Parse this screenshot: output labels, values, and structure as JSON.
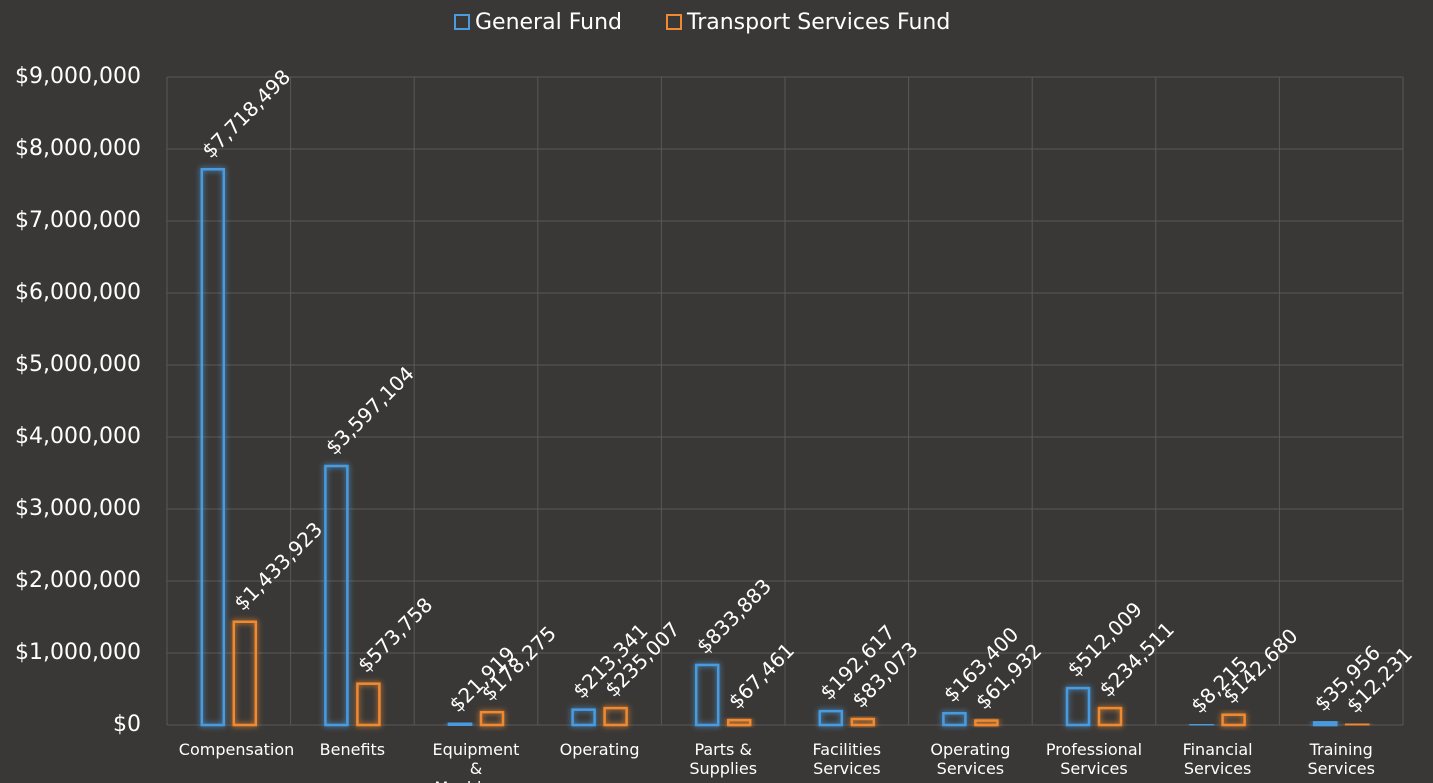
{
  "chart_data": {
    "type": "bar",
    "categories": [
      "Compensation",
      "Benefits",
      "Equipment & Machinery",
      "Operating",
      "Parts & Supplies",
      "Facilities Services",
      "Operating Services",
      "Professional Services",
      "Financial Services",
      "Training Services"
    ],
    "series": [
      {
        "name": "General Fund",
        "color": "#4a9be0",
        "values": [
          7718498,
          3597104,
          21919,
          213341,
          833883,
          192617,
          163400,
          512009,
          8215,
          35956
        ],
        "value_labels": [
          "$7,718,498",
          "$3,597,104",
          "$21,919",
          "$213,341",
          "$833,883",
          "$192,617",
          "$163,400",
          "$512,009",
          "$8,215",
          "$35,956"
        ]
      },
      {
        "name": "Transport Services Fund",
        "color": "#f08a30",
        "values": [
          1433923,
          573758,
          178275,
          235007,
          67461,
          83073,
          61932,
          234511,
          142680,
          12231
        ],
        "value_labels": [
          "$1,433,923",
          "$573,758",
          "$178,275",
          "$235,007",
          "$67,461",
          "$83,073",
          "$61,932",
          "$234,511",
          "$142,680",
          "$12,231"
        ]
      }
    ],
    "ylim": [
      0,
      9000000
    ],
    "yticks": [
      {
        "value": 0,
        "label": "$0"
      },
      {
        "value": 1000000,
        "label": "$1,000,000"
      },
      {
        "value": 2000000,
        "label": "$2,000,000"
      },
      {
        "value": 3000000,
        "label": "$3,000,000"
      },
      {
        "value": 4000000,
        "label": "$4,000,000"
      },
      {
        "value": 5000000,
        "label": "$5,000,000"
      },
      {
        "value": 6000000,
        "label": "$6,000,000"
      },
      {
        "value": 7000000,
        "label": "$7,000,000"
      },
      {
        "value": 8000000,
        "label": "$8,000,000"
      },
      {
        "value": 9000000,
        "label": "$9,000,000"
      }
    ],
    "grid": true,
    "legend": "top"
  }
}
